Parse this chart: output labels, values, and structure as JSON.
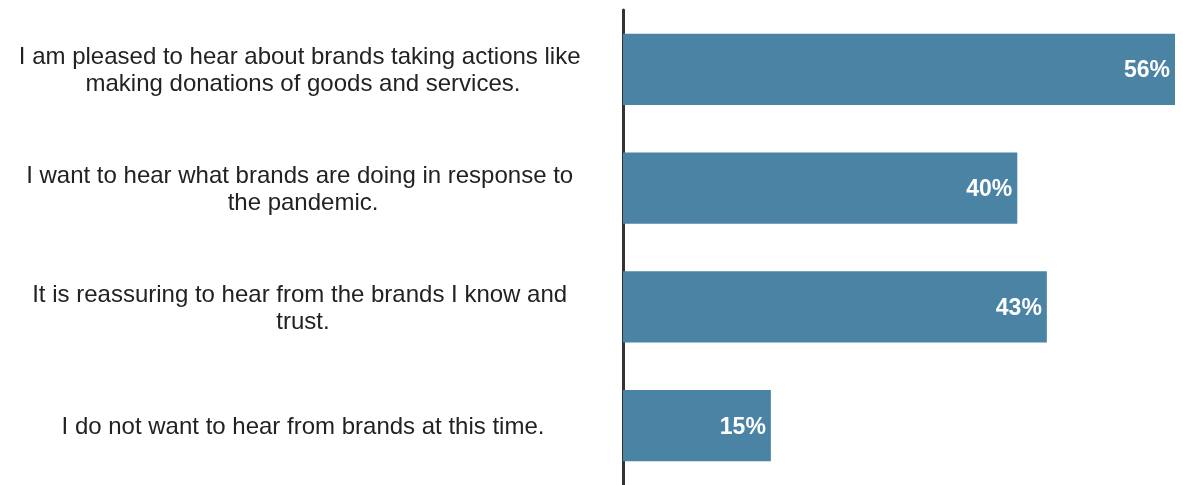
{
  "chart_data": {
    "type": "bar",
    "orientation": "horizontal",
    "color": "#4b83a5",
    "categories": [
      "I am pleased to hear about brands taking actions like making donations of goods and services.",
      "I want to hear what brands are doing in response to the pandemic.",
      "It is reassuring to hear from the brands I know and trust.",
      "I do not want to hear from brands at this time."
    ],
    "values": [
      56,
      40,
      43,
      15
    ],
    "value_labels": [
      "56%",
      "40%",
      "43%",
      "15%"
    ]
  }
}
